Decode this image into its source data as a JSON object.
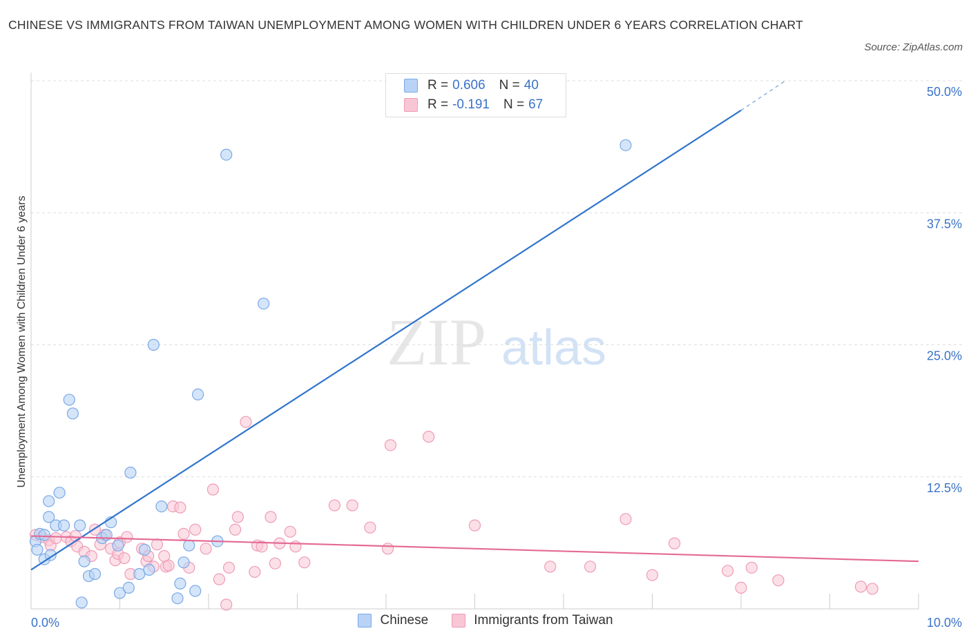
{
  "header": {
    "title": "CHINESE VS IMMIGRANTS FROM TAIWAN UNEMPLOYMENT AMONG WOMEN WITH CHILDREN UNDER 6 YEARS CORRELATION CHART",
    "source": "Source: ZipAtlas.com"
  },
  "watermark": {
    "zip": "ZIP",
    "atlas": "atlas"
  },
  "colors": {
    "blue_fill": "#b8d3f5",
    "blue_stroke": "#7aa8e6",
    "blue_line": "#2f74cc",
    "pink_fill": "#f9c6d6",
    "pink_stroke": "#ee9bb6",
    "pink_line": "#e46a93",
    "tick_label": "#3a72c8",
    "grid": "#dcdcdc"
  },
  "legend": {
    "row1": {
      "r_label": "R =",
      "r_value": "0.606",
      "n_label": "N =",
      "n_value": "40"
    },
    "row2": {
      "r_label": "R =",
      "r_value": "-0.191",
      "n_label": "N =",
      "n_value": "67"
    }
  },
  "chart_data": {
    "type": "scatter",
    "title": "CHINESE VS IMMIGRANTS FROM TAIWAN UNEMPLOYMENT AMONG WOMEN WITH CHILDREN UNDER 6 YEARS CORRELATION CHART",
    "xlabel": "",
    "ylabel": "Unemployment Among Women with Children Under 6 years",
    "xlim": [
      0,
      10
    ],
    "ylim": [
      0,
      50
    ],
    "x_ticks": [
      0,
      1,
      2,
      3,
      4,
      5,
      6,
      7,
      8,
      9,
      10
    ],
    "x_tick_labels": [
      {
        "value": 0,
        "label": "0.0%"
      },
      {
        "value": 10,
        "label": "10.0%"
      }
    ],
    "y_ticks": [
      12.5,
      25,
      37.5,
      50
    ],
    "y_tick_labels": [
      "12.5%",
      "25.0%",
      "37.5%",
      "50.0%"
    ],
    "grid": "horizontal dashed",
    "legend_position": "top-center and bottom",
    "series": [
      {
        "name": "Chinese",
        "R": 0.606,
        "N": 40,
        "trend": {
          "x0": 0,
          "y0": 3.7,
          "x1": 8.0,
          "y1": 47.2,
          "dashed_to_x": 8.5,
          "dashed_to_y": 50.0
        },
        "points": [
          [
            0.05,
            6.4
          ],
          [
            0.07,
            5.6
          ],
          [
            0.1,
            7.1
          ],
          [
            0.15,
            7.0
          ],
          [
            0.15,
            4.7
          ],
          [
            0.2,
            10.2
          ],
          [
            0.2,
            8.7
          ],
          [
            0.22,
            5.1
          ],
          [
            0.28,
            7.9
          ],
          [
            0.32,
            11.0
          ],
          [
            0.37,
            7.9
          ],
          [
            0.43,
            19.8
          ],
          [
            0.47,
            18.5
          ],
          [
            0.55,
            7.9
          ],
          [
            0.57,
            0.6
          ],
          [
            0.6,
            4.5
          ],
          [
            0.65,
            3.1
          ],
          [
            0.72,
            3.3
          ],
          [
            0.8,
            6.7
          ],
          [
            0.85,
            7.0
          ],
          [
            0.9,
            8.2
          ],
          [
            0.98,
            6.0
          ],
          [
            1.0,
            1.5
          ],
          [
            1.1,
            2.0
          ],
          [
            1.12,
            12.9
          ],
          [
            1.22,
            3.3
          ],
          [
            1.28,
            5.6
          ],
          [
            1.33,
            3.7
          ],
          [
            1.38,
            25.0
          ],
          [
            1.47,
            9.7
          ],
          [
            1.65,
            1.0
          ],
          [
            1.68,
            2.4
          ],
          [
            1.72,
            4.4
          ],
          [
            1.78,
            6.0
          ],
          [
            1.85,
            1.7
          ],
          [
            1.88,
            20.3
          ],
          [
            2.1,
            6.4
          ],
          [
            2.2,
            43.0
          ],
          [
            2.62,
            28.9
          ],
          [
            6.7,
            43.9
          ]
        ]
      },
      {
        "name": "Immigrants from Taiwan",
        "R": -0.191,
        "N": 67,
        "trend": {
          "x0": 0,
          "y0": 6.9,
          "x1": 10,
          "y1": 4.5
        },
        "points": [
          [
            0.05,
            7.0
          ],
          [
            0.12,
            6.8
          ],
          [
            0.2,
            6.5
          ],
          [
            0.22,
            6.0
          ],
          [
            0.28,
            6.7
          ],
          [
            0.4,
            6.8
          ],
          [
            0.45,
            6.4
          ],
          [
            0.5,
            6.9
          ],
          [
            0.52,
            5.9
          ],
          [
            0.6,
            5.4
          ],
          [
            0.68,
            5.0
          ],
          [
            0.72,
            7.5
          ],
          [
            0.78,
            6.1
          ],
          [
            0.83,
            7.0
          ],
          [
            0.9,
            5.7
          ],
          [
            0.95,
            4.6
          ],
          [
            0.98,
            5.2
          ],
          [
            1.0,
            6.3
          ],
          [
            1.05,
            4.8
          ],
          [
            1.08,
            6.8
          ],
          [
            1.12,
            3.3
          ],
          [
            1.25,
            5.7
          ],
          [
            1.3,
            4.5
          ],
          [
            1.32,
            5.0
          ],
          [
            1.38,
            4.0
          ],
          [
            1.42,
            6.1
          ],
          [
            1.5,
            5.0
          ],
          [
            1.52,
            4.0
          ],
          [
            1.55,
            4.1
          ],
          [
            1.6,
            9.7
          ],
          [
            1.68,
            9.6
          ],
          [
            1.72,
            7.1
          ],
          [
            1.78,
            3.9
          ],
          [
            1.85,
            7.5
          ],
          [
            1.97,
            5.7
          ],
          [
            2.05,
            11.3
          ],
          [
            2.12,
            2.8
          ],
          [
            2.2,
            0.4
          ],
          [
            2.23,
            3.9
          ],
          [
            2.3,
            7.5
          ],
          [
            2.33,
            8.7
          ],
          [
            2.42,
            17.7
          ],
          [
            2.52,
            3.5
          ],
          [
            2.55,
            6.0
          ],
          [
            2.6,
            5.9
          ],
          [
            2.7,
            8.7
          ],
          [
            2.75,
            4.3
          ],
          [
            2.8,
            6.2
          ],
          [
            2.92,
            7.3
          ],
          [
            2.98,
            5.9
          ],
          [
            3.08,
            4.4
          ],
          [
            3.42,
            9.8
          ],
          [
            3.62,
            9.8
          ],
          [
            3.82,
            7.7
          ],
          [
            4.02,
            5.7
          ],
          [
            4.05,
            15.5
          ],
          [
            4.48,
            16.3
          ],
          [
            5.0,
            7.9
          ],
          [
            5.85,
            4.0
          ],
          [
            6.3,
            4.0
          ],
          [
            6.7,
            8.5
          ],
          [
            7.0,
            3.2
          ],
          [
            7.25,
            6.2
          ],
          [
            7.85,
            3.6
          ],
          [
            8.0,
            2.0
          ],
          [
            8.12,
            3.9
          ],
          [
            8.42,
            2.7
          ],
          [
            9.35,
            2.1
          ],
          [
            9.48,
            1.9
          ]
        ]
      }
    ]
  },
  "legend_bottom": {
    "chinese": "Chinese",
    "taiwan": "Immigrants from Taiwan"
  }
}
